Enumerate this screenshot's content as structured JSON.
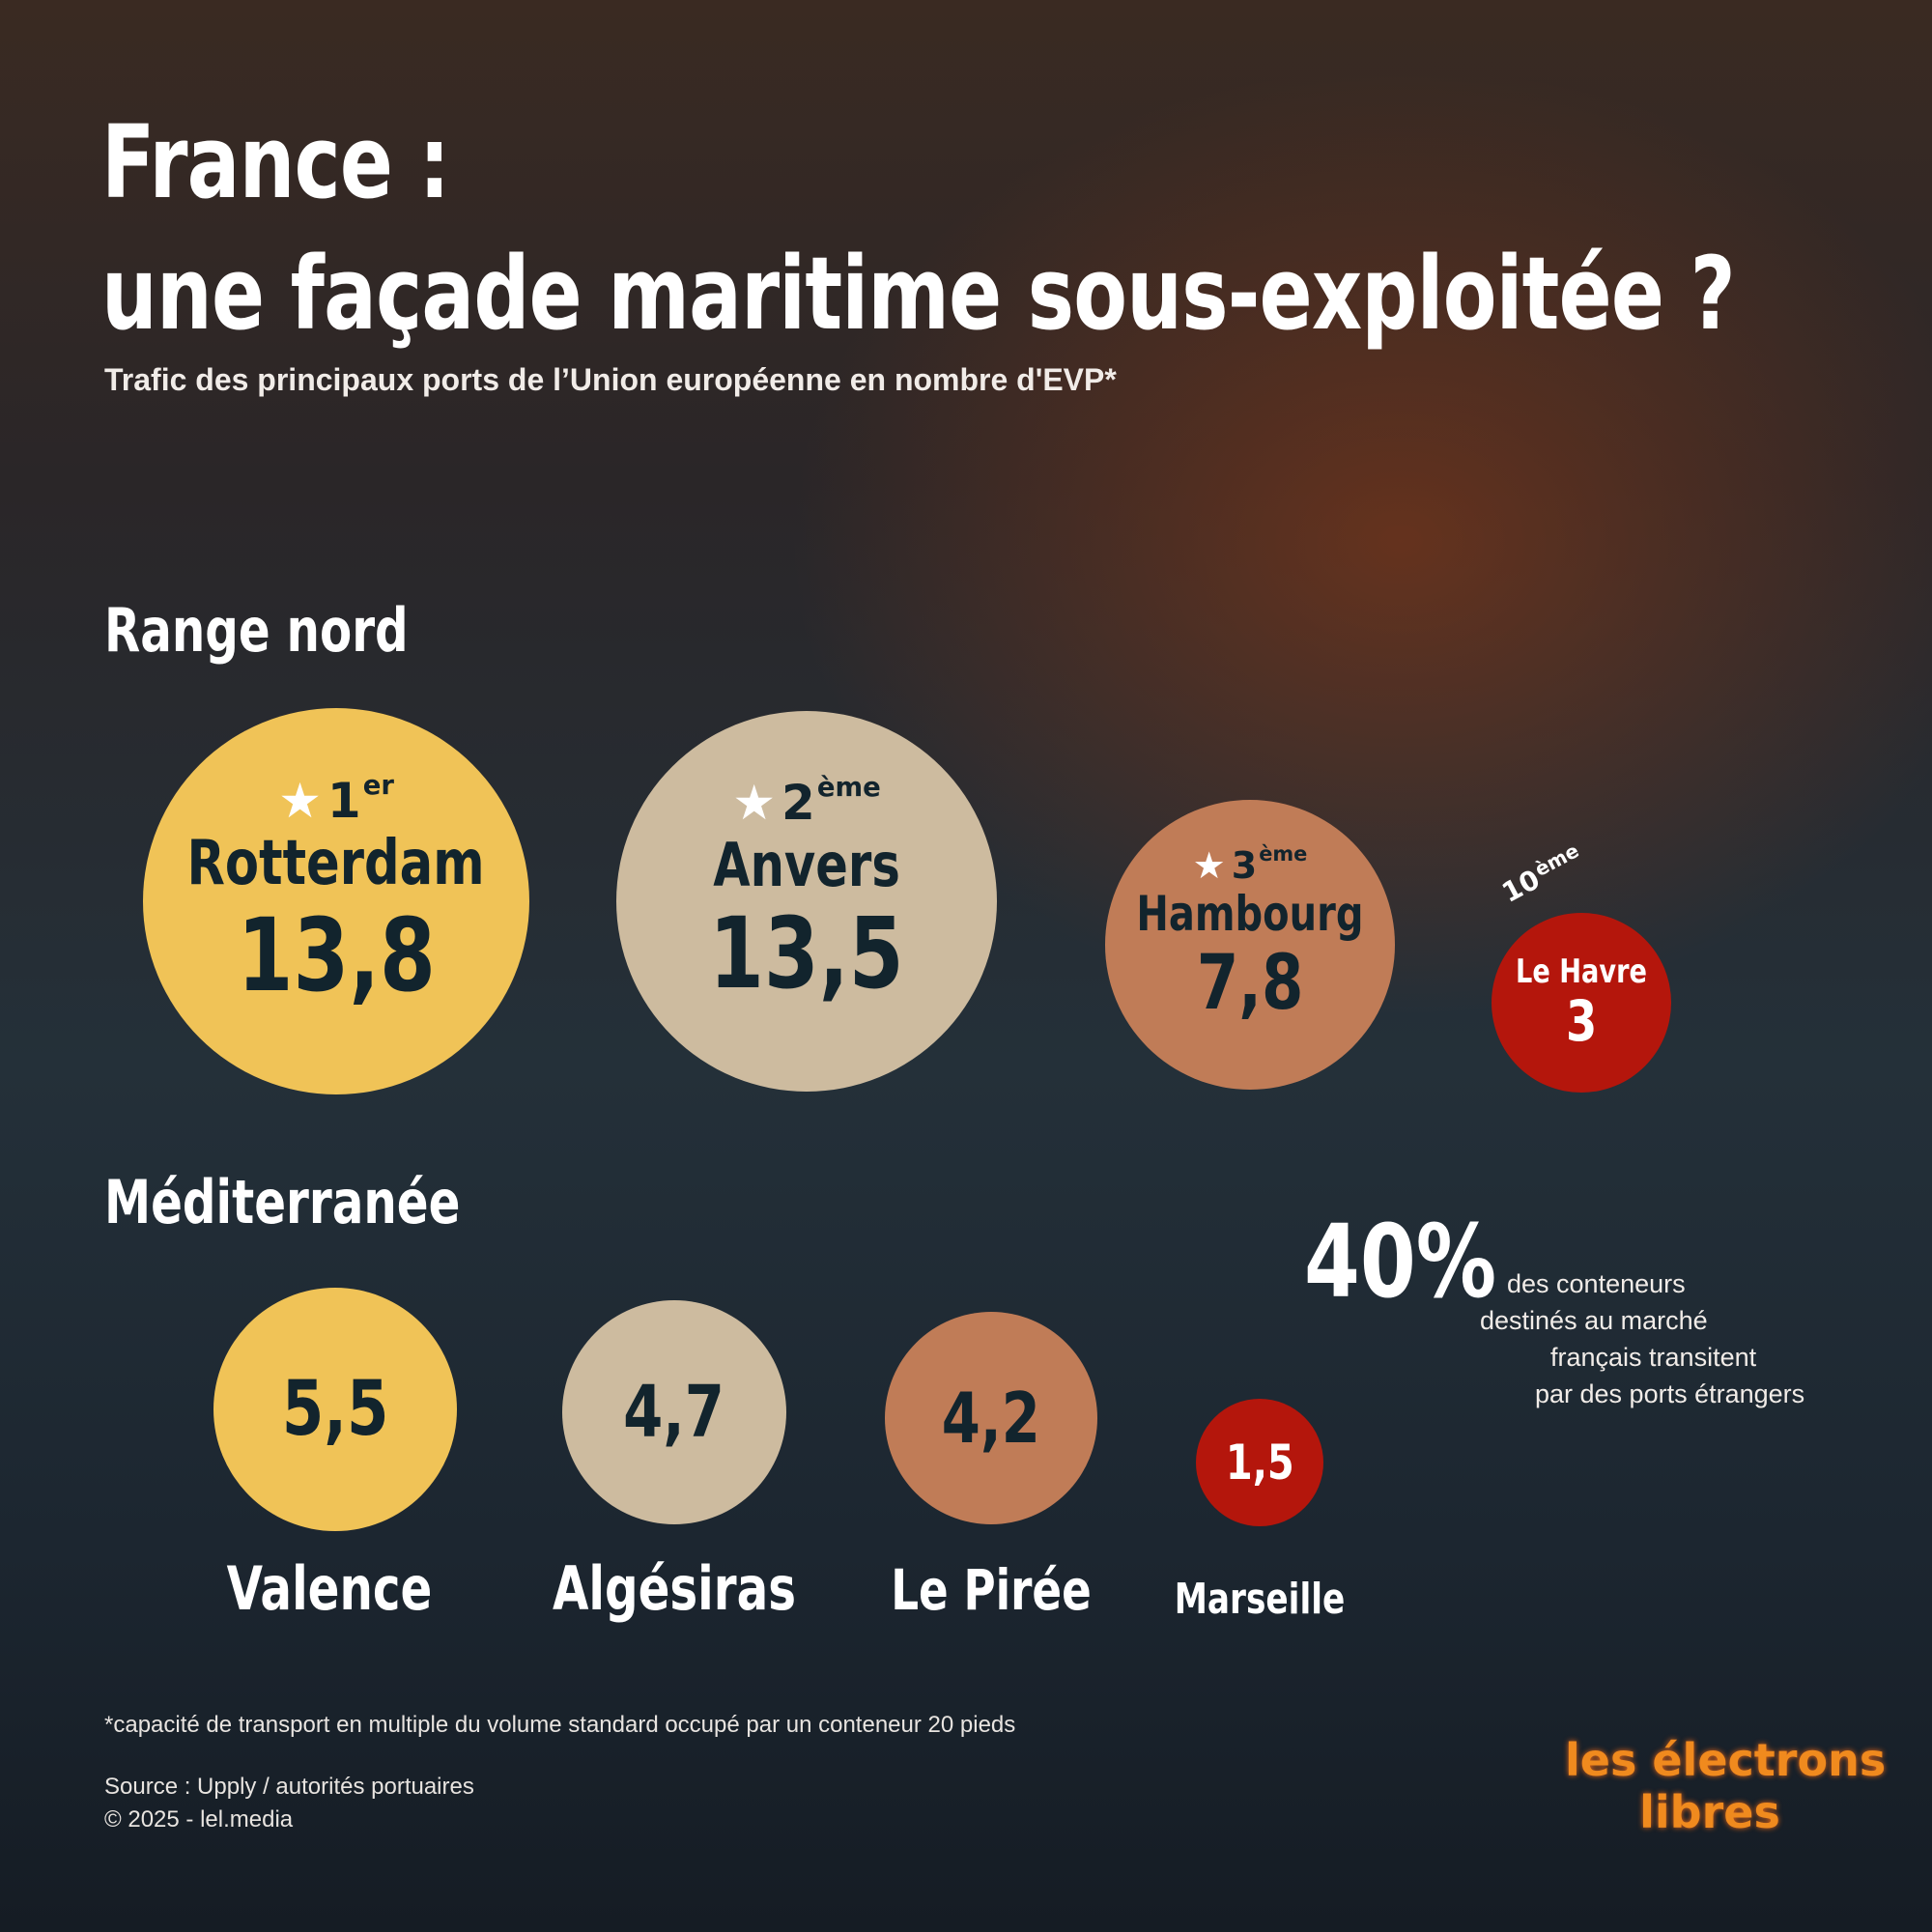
{
  "title_line1": "France :",
  "title_line2": "une façade maritime sous-exploitée ?",
  "subtitle": "Trafic des principaux ports de l’Union européenne en nombre d'EVP*",
  "colors": {
    "gold": "#f0c357",
    "beige": "#cdbb9f",
    "terracotta": "#c07c57",
    "red": "#b4160c",
    "text_dark": "#12242d"
  },
  "chart_data": [
    {
      "type": "bubble",
      "title": "Range nord",
      "ports": [
        {
          "rank_num": "1",
          "rank_sup": "er",
          "name": "Rotterdam",
          "value": 13.8,
          "label": "13,8",
          "color": "#f0c357"
        },
        {
          "rank_num": "2",
          "rank_sup": "ème",
          "name": "Anvers",
          "value": 13.5,
          "label": "13,5",
          "color": "#cdbb9f"
        },
        {
          "rank_num": "3",
          "rank_sup": "ème",
          "name": "Hambourg",
          "value": 7.8,
          "label": "7,8",
          "color": "#c07c57"
        },
        {
          "rank_num": "10",
          "rank_sup": "ème",
          "name": "Le Havre",
          "value": 3,
          "label": "3",
          "color": "#b4160c"
        }
      ]
    },
    {
      "type": "bubble",
      "title": "Méditerranée",
      "ports": [
        {
          "name": "Valence",
          "value": 5.5,
          "label": "5,5",
          "color": "#f0c357"
        },
        {
          "name": "Algésiras",
          "value": 4.7,
          "label": "4,7",
          "color": "#cdbb9f"
        },
        {
          "name": "Le Pirée",
          "value": 4.2,
          "label": "4,2",
          "color": "#c07c57"
        },
        {
          "name": "Marseille",
          "value": 1.5,
          "label": "1,5",
          "color": "#b4160c"
        }
      ]
    }
  ],
  "stat": {
    "big": "40%",
    "lines": [
      "des conteneurs",
      "destinés au marché",
      "français transitent",
      "par des ports étrangers"
    ]
  },
  "footnote": "*capacité de transport en multiple du volume standard occupé par un conteneur 20 pieds",
  "source": "Source : Upply / autorités portuaires",
  "copyright": "© 2025 - lel.media",
  "logo": {
    "line1": "les électrons",
    "line2": "libres"
  }
}
